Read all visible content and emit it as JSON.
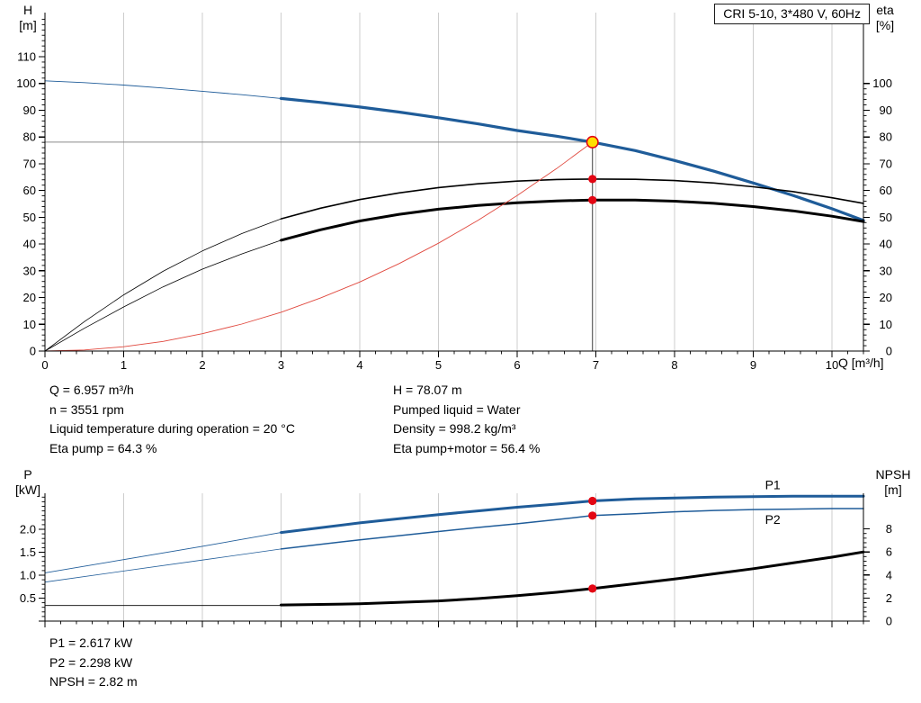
{
  "info": {
    "top_left": [
      "Q = 6.957 m³/h",
      "n = 3551 rpm",
      "Liquid temperature during operation = 20 °C",
      "Eta pump = 64.3 %"
    ],
    "top_right": [
      "H = 78.07 m",
      "Pumped liquid = Water",
      "Density = 998.2 kg/m³",
      "Eta pump+motor = 56.4 %"
    ],
    "bottom": [
      "P1 = 2.617 kW",
      "P2 = 2.298 kW",
      "NPSH = 2.82 m"
    ]
  },
  "colors": {
    "curve_blue": "#1f5c99",
    "curve_black": "#000000",
    "system_red": "#e0483e",
    "dot_red": "#e30613",
    "duty_yellow": "#ffdf00",
    "grid": "#cdcdcd"
  },
  "chart_data": [
    {
      "type": "line",
      "title": "CRI 5-10, 3*480 V, 60Hz",
      "x": {
        "label": "Q [m³/h]",
        "min": 0,
        "max": 10.4,
        "minor_step": 0.2,
        "show_labels": true,
        "majors": [
          {
            "v": 0,
            "label": "0"
          },
          {
            "v": 1,
            "label": "1"
          },
          {
            "v": 2,
            "label": "2"
          },
          {
            "v": 3,
            "label": "3"
          },
          {
            "v": 4,
            "label": "4"
          },
          {
            "v": 5,
            "label": "5"
          },
          {
            "v": 6,
            "label": "6"
          },
          {
            "v": 7,
            "label": "7"
          },
          {
            "v": 8,
            "label": "8"
          },
          {
            "v": 9,
            "label": "9"
          },
          {
            "v": 10,
            "label": "10"
          }
        ]
      },
      "y_left": {
        "label_lines": [
          "H",
          "[m]"
        ],
        "min": 0,
        "max": 110,
        "minor_step": 2,
        "majors": [
          {
            "v": 0,
            "label": "0"
          },
          {
            "v": 10,
            "label": "10"
          },
          {
            "v": 20,
            "label": "20"
          },
          {
            "v": 30,
            "label": "30"
          },
          {
            "v": 40,
            "label": "40"
          },
          {
            "v": 50,
            "label": "50"
          },
          {
            "v": 60,
            "label": "60"
          },
          {
            "v": 70,
            "label": "70"
          },
          {
            "v": 80,
            "label": "80"
          },
          {
            "v": 90,
            "label": "90"
          },
          {
            "v": 100,
            "label": "100"
          },
          {
            "v": 110,
            "label": "110"
          }
        ]
      },
      "y_right": {
        "label_lines": [
          "eta",
          "[%]"
        ],
        "min": 0,
        "max": 100,
        "minor_step": 2,
        "majors": [
          {
            "v": 0,
            "label": "0"
          },
          {
            "v": 10,
            "label": "10"
          },
          {
            "v": 20,
            "label": "20"
          },
          {
            "v": 30,
            "label": "30"
          },
          {
            "v": 40,
            "label": "40"
          },
          {
            "v": 50,
            "label": "50"
          },
          {
            "v": 60,
            "label": "60"
          },
          {
            "v": 70,
            "label": "70"
          },
          {
            "v": 80,
            "label": "80"
          },
          {
            "v": 90,
            "label": "90"
          },
          {
            "v": 100,
            "label": "100"
          }
        ]
      },
      "series": [
        {
          "name": "h-curve-extrapolated",
          "axis": "left",
          "color": "#1f5c99",
          "width": 0.9,
          "points": [
            [
              0,
              101
            ],
            [
              0.5,
              100.3
            ],
            [
              1,
              99.4
            ],
            [
              1.5,
              98.3
            ],
            [
              2,
              97.1
            ],
            [
              2.5,
              95.8
            ],
            [
              3,
              94.4
            ]
          ]
        },
        {
          "name": "h-curve",
          "axis": "left",
          "color": "#1f5c99",
          "width": 3.2,
          "points": [
            [
              3,
              94.4
            ],
            [
              3.5,
              92.9
            ],
            [
              4,
              91.2
            ],
            [
              4.5,
              89.3
            ],
            [
              5,
              87.2
            ],
            [
              5.5,
              84.9
            ],
            [
              6,
              82.4
            ],
            [
              6.5,
              80.3
            ],
            [
              6.957,
              78.07
            ],
            [
              7.5,
              74.9
            ],
            [
              8,
              71.2
            ],
            [
              8.5,
              67.2
            ],
            [
              9,
              62.8
            ],
            [
              9.5,
              58.2
            ],
            [
              10,
              53.2
            ],
            [
              10.4,
              48.8
            ]
          ]
        },
        {
          "name": "eta-pump-extrapolated",
          "axis": "right",
          "color": "#000000",
          "width": 0.8,
          "points": [
            [
              0,
              0
            ],
            [
              0.5,
              11
            ],
            [
              1,
              21
            ],
            [
              1.5,
              29.8
            ],
            [
              2,
              37.4
            ],
            [
              2.5,
              43.9
            ],
            [
              3,
              49.4
            ]
          ]
        },
        {
          "name": "eta-pump-curve",
          "axis": "right",
          "color": "#000000",
          "width": 1.6,
          "points": [
            [
              3,
              49.4
            ],
            [
              3.5,
              53.4
            ],
            [
              4,
              56.6
            ],
            [
              4.5,
              59.1
            ],
            [
              5,
              61.1
            ],
            [
              5.5,
              62.5
            ],
            [
              6,
              63.5
            ],
            [
              6.5,
              64.1
            ],
            [
              6.957,
              64.3
            ],
            [
              7.5,
              64.2
            ],
            [
              8,
              63.7
            ],
            [
              8.5,
              62.8
            ],
            [
              9,
              61.4
            ],
            [
              9.5,
              59.6
            ],
            [
              10,
              57.3
            ],
            [
              10.4,
              55.2
            ]
          ]
        },
        {
          "name": "eta-pump-motor-extrapolated",
          "axis": "right",
          "color": "#000000",
          "width": 0.8,
          "points": [
            [
              0,
              0
            ],
            [
              0.5,
              8.5
            ],
            [
              1,
              16.5
            ],
            [
              1.5,
              24
            ],
            [
              2,
              30.6
            ],
            [
              2.5,
              36.3
            ],
            [
              3,
              41.4
            ]
          ]
        },
        {
          "name": "eta-pump-motor-curve",
          "axis": "right",
          "color": "#000000",
          "width": 3,
          "points": [
            [
              3,
              41.4
            ],
            [
              3.5,
              45.3
            ],
            [
              4,
              48.6
            ],
            [
              4.5,
              51.1
            ],
            [
              5,
              53
            ],
            [
              5.5,
              54.4
            ],
            [
              6,
              55.4
            ],
            [
              6.5,
              56.1
            ],
            [
              6.957,
              56.4
            ],
            [
              7.5,
              56.4
            ],
            [
              8,
              56
            ],
            [
              8.5,
              55.2
            ],
            [
              9,
              54
            ],
            [
              9.5,
              52.4
            ],
            [
              10,
              50.4
            ],
            [
              10.4,
              48.4
            ]
          ]
        },
        {
          "name": "system-curve",
          "axis": "left",
          "color": "#e0483e",
          "width": 0.9,
          "points": [
            [
              0,
              0
            ],
            [
              0.5,
              0.4
            ],
            [
              1,
              1.6
            ],
            [
              1.5,
              3.6
            ],
            [
              2,
              6.5
            ],
            [
              2.5,
              10.1
            ],
            [
              3,
              14.5
            ],
            [
              3.5,
              19.8
            ],
            [
              4,
              25.8
            ],
            [
              4.5,
              32.7
            ],
            [
              5,
              40.3
            ],
            [
              5.5,
              48.8
            ],
            [
              6,
              58.1
            ],
            [
              6.5,
              68.2
            ],
            [
              6.957,
              78.07
            ]
          ]
        }
      ],
      "ref_lines": [
        {
          "name": "duty-head-line",
          "type": "h",
          "v": 78.07,
          "from": 0,
          "to": 6.957,
          "color": "#8a8a8a",
          "width": 1
        },
        {
          "name": "duty-flow-line",
          "type": "v",
          "v": 6.957,
          "from": 0,
          "to": 78.07,
          "color": "#3a3a3a",
          "width": 1
        }
      ],
      "markers": [
        {
          "name": "duty-point-marker",
          "q": 6.957,
          "v": 78.07,
          "axis": "left",
          "r": 6.2,
          "fill": "#ffdf00",
          "stroke": "#e30613",
          "sw": 1.6,
          "interactable": true
        },
        {
          "name": "eta-pump-duty-dot",
          "q": 6.957,
          "v": 64.3,
          "axis": "right",
          "r": 4.6,
          "fill": "#e30613"
        },
        {
          "name": "eta-pump-motor-duty-dot",
          "q": 6.957,
          "v": 56.4,
          "axis": "right",
          "r": 4.6,
          "fill": "#e30613"
        }
      ]
    },
    {
      "type": "line",
      "title": "",
      "x": {
        "label": "",
        "min": 0,
        "max": 10.4,
        "minor_step": 0.2,
        "show_labels": false,
        "majors": [
          {
            "v": 0,
            "label": "0"
          },
          {
            "v": 1,
            "label": "1"
          },
          {
            "v": 2,
            "label": "2"
          },
          {
            "v": 3,
            "label": "3"
          },
          {
            "v": 4,
            "label": "4"
          },
          {
            "v": 5,
            "label": "5"
          },
          {
            "v": 6,
            "label": "6"
          },
          {
            "v": 7,
            "label": "7"
          },
          {
            "v": 8,
            "label": "8"
          },
          {
            "v": 9,
            "label": "9"
          },
          {
            "v": 10,
            "label": "10"
          }
        ]
      },
      "y_left": {
        "label_lines": [
          "P",
          "[kW]"
        ],
        "min": 0,
        "max": 2.7,
        "minor_step": 0.1,
        "majors": [
          {
            "v": 0,
            "label": ""
          },
          {
            "v": 0.5,
            "label": "0.5"
          },
          {
            "v": 1,
            "label": "1.0"
          },
          {
            "v": 1.5,
            "label": "1.5"
          },
          {
            "v": 2,
            "label": "2.0"
          }
        ]
      },
      "y_right": {
        "label_lines": [
          "NPSH",
          "[m]"
        ],
        "min": 0,
        "max": 8,
        "minor_step": 0.4,
        "majors": [
          {
            "v": 0,
            "label": "0"
          },
          {
            "v": 2,
            "label": "2"
          },
          {
            "v": 4,
            "label": "4"
          },
          {
            "v": 6,
            "label": "6"
          },
          {
            "v": 8,
            "label": "8"
          }
        ]
      },
      "series": [
        {
          "name": "p1-curve-extrapolated",
          "axis": "left",
          "color": "#1f5c99",
          "width": 0.9,
          "points": [
            [
              0,
              1.05
            ],
            [
              1,
              1.34
            ],
            [
              2,
              1.63
            ],
            [
              3,
              1.93
            ]
          ]
        },
        {
          "name": "p1-curve",
          "axis": "left",
          "color": "#1f5c99",
          "width": 3,
          "points": [
            [
              3,
              1.93
            ],
            [
              4,
              2.14
            ],
            [
              4.5,
              2.23
            ],
            [
              5,
              2.32
            ],
            [
              5.5,
              2.4
            ],
            [
              6,
              2.48
            ],
            [
              6.5,
              2.55
            ],
            [
              6.957,
              2.617
            ],
            [
              7.5,
              2.66
            ],
            [
              8,
              2.68
            ],
            [
              8.5,
              2.7
            ],
            [
              9,
              2.71
            ],
            [
              9.5,
              2.72
            ],
            [
              10,
              2.72
            ],
            [
              10.4,
              2.72
            ]
          ]
        },
        {
          "name": "p2-curve-extrapolated",
          "axis": "left",
          "color": "#1f5c99",
          "width": 0.8,
          "points": [
            [
              0,
              0.85
            ],
            [
              1,
              1.09
            ],
            [
              2,
              1.33
            ],
            [
              3,
              1.57
            ]
          ]
        },
        {
          "name": "p2-curve",
          "axis": "left",
          "color": "#1f5c99",
          "width": 1.5,
          "points": [
            [
              3,
              1.57
            ],
            [
              4,
              1.77
            ],
            [
              4.5,
              1.86
            ],
            [
              5,
              1.95
            ],
            [
              5.5,
              2.04
            ],
            [
              6,
              2.12
            ],
            [
              6.5,
              2.21
            ],
            [
              6.957,
              2.298
            ],
            [
              7.5,
              2.34
            ],
            [
              8,
              2.38
            ],
            [
              8.5,
              2.41
            ],
            [
              9,
              2.43
            ],
            [
              9.5,
              2.44
            ],
            [
              10,
              2.45
            ],
            [
              10.4,
              2.45
            ]
          ]
        },
        {
          "name": "npsh-curve-extrapolated",
          "axis": "right",
          "color": "#000000",
          "width": 0.9,
          "points": [
            [
              0,
              1.35
            ],
            [
              3,
              1.35
            ]
          ]
        },
        {
          "name": "npsh-curve",
          "axis": "right",
          "color": "#000000",
          "width": 3,
          "points": [
            [
              3,
              1.4
            ],
            [
              4,
              1.5
            ],
            [
              5,
              1.75
            ],
            [
              5.5,
              1.95
            ],
            [
              6,
              2.2
            ],
            [
              6.5,
              2.5
            ],
            [
              6.957,
              2.82
            ],
            [
              7.5,
              3.25
            ],
            [
              8,
              3.65
            ],
            [
              8.5,
              4.1
            ],
            [
              9,
              4.55
            ],
            [
              9.5,
              5.05
            ],
            [
              10,
              5.55
            ],
            [
              10.4,
              6.0
            ]
          ]
        }
      ],
      "ref_lines": [],
      "markers": [
        {
          "name": "p1-duty-dot",
          "q": 6.957,
          "v": 2.617,
          "axis": "left",
          "r": 4.6,
          "fill": "#e30613"
        },
        {
          "name": "p2-duty-dot",
          "q": 6.957,
          "v": 2.298,
          "axis": "left",
          "r": 4.6,
          "fill": "#e30613"
        },
        {
          "name": "npsh-duty-dot",
          "q": 6.957,
          "v": 2.82,
          "axis": "right",
          "r": 4.6,
          "fill": "#e30613"
        }
      ],
      "curve_labels": [
        {
          "text": "P1",
          "q": 9.15,
          "v": 2.72,
          "axis": "left",
          "dy": -8,
          "color": "#1f5c99"
        },
        {
          "text": "P2",
          "q": 9.15,
          "v": 2.45,
          "axis": "left",
          "dy": 17,
          "color": "#1f5c99"
        }
      ]
    }
  ]
}
